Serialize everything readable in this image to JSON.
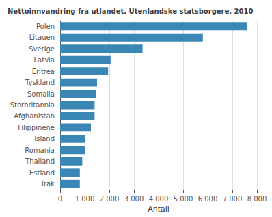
{
  "chart_data": {
    "type": "bar",
    "orientation": "horizontal",
    "title": "Nettoinnvandring fra utlandet. Utenlandske statsborgere. 2010",
    "categories": [
      "Polen",
      "Litauen",
      "Sverige",
      "Latvia",
      "Eritrea",
      "Tyskland",
      "Somalia",
      "Storbritannia",
      "Afghanistan",
      "Filippinene",
      "Island",
      "Romania",
      "Thailand",
      "Estland",
      "Irak"
    ],
    "values": [
      7600,
      5800,
      3350,
      2050,
      1950,
      1500,
      1450,
      1400,
      1400,
      1250,
      1000,
      1000,
      900,
      800,
      800
    ],
    "color": "#3a87b5",
    "xlabel": "Antall",
    "xlim": [
      0,
      8000
    ],
    "xticks": [
      0,
      {
        "value": 1000,
        "label": "1 000"
      },
      {
        "value": 2000,
        "label": "2 000"
      },
      {
        "value": 3000,
        "label": "3 000"
      },
      {
        "value": 4000,
        "label": "4 000"
      },
      {
        "value": 5000,
        "label": "5 000"
      },
      {
        "value": 6000,
        "label": "6 000"
      },
      {
        "value": 7000,
        "label": "7 000"
      },
      {
        "value": 8000,
        "label": "8 000"
      }
    ],
    "grid": true
  }
}
